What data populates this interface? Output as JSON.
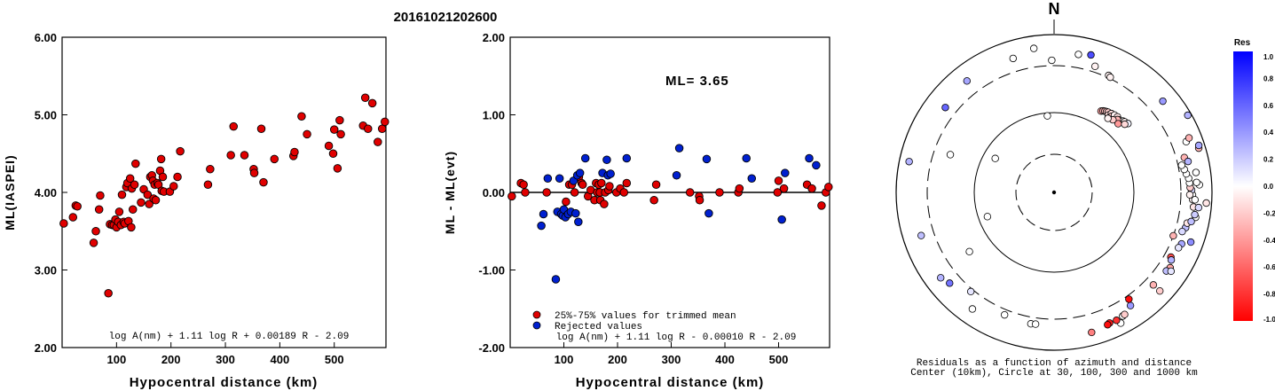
{
  "title": "20161021202600",
  "chart_data": [
    {
      "type": "scatter",
      "xlabel": "Hypocentral distance (km)",
      "ylabel": "ML(IASPEI)",
      "xlim": [
        0,
        595
      ],
      "ylim": [
        2.0,
        6.0
      ],
      "x_ticks": [
        "100",
        "200",
        "300",
        "400",
        "500"
      ],
      "y_ticks": [
        "6.00",
        "5.00",
        "4.00",
        "3.00",
        "2.00"
      ],
      "grid": false,
      "annotation": "log A(nm) + 1.11 log R + 0.00189 R - 2.09",
      "series": [
        {
          "color": "#e00000",
          "points": [
            [
              3,
              3.6
            ],
            [
              20,
              3.68
            ],
            [
              25,
              3.83
            ],
            [
              28,
              3.82
            ],
            [
              58,
              3.35
            ],
            [
              62,
              3.5
            ],
            [
              68,
              3.78
            ],
            [
              70,
              3.96
            ],
            [
              85,
              2.7
            ],
            [
              88,
              3.59
            ],
            [
              92,
              3.58
            ],
            [
              95,
              3.58
            ],
            [
              98,
              3.65
            ],
            [
              100,
              3.55
            ],
            [
              103,
              3.62
            ],
            [
              105,
              3.75
            ],
            [
              108,
              3.58
            ],
            [
              110,
              3.97
            ],
            [
              113,
              3.62
            ],
            [
              115,
              3.6
            ],
            [
              118,
              4.07
            ],
            [
              120,
              4.12
            ],
            [
              122,
              3.63
            ],
            [
              125,
              4.18
            ],
            [
              127,
              3.55
            ],
            [
              128,
              4.05
            ],
            [
              130,
              3.78
            ],
            [
              133,
              4.1
            ],
            [
              135,
              4.37
            ],
            [
              145,
              3.87
            ],
            [
              150,
              4.04
            ],
            [
              157,
              3.97
            ],
            [
              160,
              3.85
            ],
            [
              162,
              4.2
            ],
            [
              165,
              4.22
            ],
            [
              167,
              4.15
            ],
            [
              168,
              3.92
            ],
            [
              170,
              4.1
            ],
            [
              172,
              3.9
            ],
            [
              175,
              4.12
            ],
            [
              177,
              4.1
            ],
            [
              180,
              4.28
            ],
            [
              182,
              4.43
            ],
            [
              183,
              4.02
            ],
            [
              185,
              4.2
            ],
            [
              187,
              4.01
            ],
            [
              198,
              4.01
            ],
            [
              205,
              4.08
            ],
            [
              212,
              4.2
            ],
            [
              217,
              4.53
            ],
            [
              268,
              4.1
            ],
            [
              272,
              4.3
            ],
            [
              310,
              4.48
            ],
            [
              315,
              4.85
            ],
            [
              335,
              4.48
            ],
            [
              352,
              4.3
            ],
            [
              353,
              4.25
            ],
            [
              366,
              4.82
            ],
            [
              370,
              4.13
            ],
            [
              390,
              4.43
            ],
            [
              425,
              4.47
            ],
            [
              427,
              4.52
            ],
            [
              440,
              4.98
            ],
            [
              450,
              4.75
            ],
            [
              490,
              4.6
            ],
            [
              498,
              4.5
            ],
            [
              500,
              4.81
            ],
            [
              506,
              4.31
            ],
            [
              510,
              4.93
            ],
            [
              512,
              4.75
            ],
            [
              553,
              4.86
            ],
            [
              557,
              5.22
            ],
            [
              562,
              4.82
            ],
            [
              570,
              5.15
            ],
            [
              580,
              4.65
            ],
            [
              588,
              4.82
            ],
            [
              593,
              4.91
            ]
          ]
        }
      ]
    },
    {
      "type": "scatter",
      "xlabel": "Hypocentral distance (km)",
      "ylabel": "ML - ML(evt)",
      "xlim": [
        0,
        595
      ],
      "ylim": [
        -2.0,
        2.0
      ],
      "x_ticks": [
        "100",
        "200",
        "300",
        "400",
        "500"
      ],
      "y_ticks": [
        "2.00",
        "1.00",
        "0.00",
        "-1.00",
        "-2.00"
      ],
      "grid": false,
      "reference_line": 0.0,
      "ml_label": "ML= 3.65",
      "annotation": "log A(nm) + 1.11 log R - 0.00010 R - 2.09",
      "legend": [
        {
          "label": "25%-75% values for trimmed mean",
          "color": "#e00000"
        },
        {
          "label": "Rejected values",
          "color": "#0020d0"
        }
      ],
      "series": [
        {
          "name": "25%-75% values for trimmed mean",
          "color": "#e00000",
          "points": [
            [
              3,
              -0.05
            ],
            [
              20,
              0.12
            ],
            [
              25,
              0.1
            ],
            [
              28,
              0.0
            ],
            [
              68,
              0.0
            ],
            [
              104,
              -0.12
            ],
            [
              110,
              0.1
            ],
            [
              115,
              0.1
            ],
            [
              120,
              0.0
            ],
            [
              128,
              0.2
            ],
            [
              133,
              0.12
            ],
            [
              135,
              0.1
            ],
            [
              145,
              -0.05
            ],
            [
              150,
              0.03
            ],
            [
              157,
              -0.1
            ],
            [
              160,
              0.12
            ],
            [
              162,
              0.0
            ],
            [
              165,
              0.1
            ],
            [
              167,
              0.0
            ],
            [
              168,
              -0.1
            ],
            [
              170,
              0.12
            ],
            [
              175,
              -0.15
            ],
            [
              177,
              0.0
            ],
            [
              183,
              0.03
            ],
            [
              185,
              0.08
            ],
            [
              198,
              0.0
            ],
            [
              205,
              0.05
            ],
            [
              212,
              0.0
            ],
            [
              217,
              0.12
            ],
            [
              268,
              -0.1
            ],
            [
              272,
              0.1
            ],
            [
              335,
              0.0
            ],
            [
              352,
              -0.05
            ],
            [
              353,
              -0.1
            ],
            [
              390,
              0.0
            ],
            [
              425,
              0.0
            ],
            [
              427,
              0.05
            ],
            [
              498,
              0.0
            ],
            [
              500,
              0.15
            ],
            [
              510,
              0.05
            ],
            [
              553,
              0.1
            ],
            [
              562,
              0.05
            ],
            [
              580,
              -0.17
            ],
            [
              588,
              0.0
            ],
            [
              593,
              0.07
            ]
          ]
        },
        {
          "name": "Rejected values",
          "color": "#0020d0",
          "points": [
            [
              58,
              -0.43
            ],
            [
              62,
              -0.28
            ],
            [
              70,
              0.18
            ],
            [
              85,
              -1.12
            ],
            [
              88,
              -0.25
            ],
            [
              92,
              0.18
            ],
            [
              95,
              -0.28
            ],
            [
              98,
              -0.3
            ],
            [
              100,
              -0.22
            ],
            [
              103,
              -0.32
            ],
            [
              108,
              -0.28
            ],
            [
              113,
              -0.25
            ],
            [
              118,
              0.15
            ],
            [
              122,
              -0.27
            ],
            [
              125,
              0.22
            ],
            [
              127,
              -0.38
            ],
            [
              130,
              0.25
            ],
            [
              140,
              0.44
            ],
            [
              172,
              0.25
            ],
            [
              180,
              0.42
            ],
            [
              182,
              0.22
            ],
            [
              187,
              0.24
            ],
            [
              217,
              0.44
            ],
            [
              310,
              0.22
            ],
            [
              315,
              0.57
            ],
            [
              366,
              0.43
            ],
            [
              370,
              -0.27
            ],
            [
              440,
              0.44
            ],
            [
              450,
              0.18
            ],
            [
              506,
              -0.35
            ],
            [
              512,
              0.25
            ],
            [
              557,
              0.44
            ],
            [
              570,
              0.35
            ]
          ]
        }
      ]
    },
    {
      "type": "scatter",
      "subtype": "polar",
      "north_label": "N",
      "caption_line1": "Residuals as a function of azimuth and distance",
      "caption_line2": "Center (10km), Circle at 30, 100, 300 and 1000 km",
      "colorbar": {
        "title": "Res",
        "ticks": [
          "1.0",
          "0.8",
          "0.6",
          "0.4",
          "0.2",
          "0.0",
          "-0.2",
          "-0.4",
          "-0.6",
          "-0.8",
          "-1.0"
        ],
        "range": [
          -1.0,
          1.0
        ],
        "high_color": "#0000ff",
        "low_color": "#ff0000"
      },
      "points_azimuth_deg_distance_km_residual": [
        [
          30,
          160,
          -0.35
        ],
        [
          31,
          165,
          -0.3
        ],
        [
          32,
          168,
          -0.28
        ],
        [
          33,
          170,
          -0.22
        ],
        [
          34,
          172,
          -0.2
        ],
        [
          35,
          162,
          -0.15
        ],
        [
          36,
          175,
          -0.12
        ],
        [
          37,
          166,
          -0.25
        ],
        [
          38,
          178,
          -0.05
        ],
        [
          40,
          180,
          -0.1
        ],
        [
          42,
          175,
          -0.02
        ],
        [
          44,
          182,
          0.0
        ],
        [
          41,
          171,
          -0.3
        ],
        [
          39,
          158,
          -0.2
        ],
        [
          45,
          185,
          -0.05
        ],
        [
          43,
          160,
          -0.4
        ],
        [
          47,
          190,
          0.05
        ],
        [
          46,
          178,
          -0.15
        ],
        [
          36,
          150,
          -0.05
        ],
        [
          25,
          350,
          -0.05
        ],
        [
          26,
          330,
          -0.05
        ],
        [
          10,
          600,
          0.0
        ],
        [
          15,
          650,
          0.7
        ],
        [
          18,
          430,
          -0.05
        ],
        [
          -1,
          420,
          0.0
        ],
        [
          -8,
          720,
          0.0
        ],
        [
          -38,
          630,
          0.35
        ],
        [
          -52,
          550,
          0.6
        ],
        [
          -78,
          780,
          0.3
        ],
        [
          -108,
          590,
          0.25
        ],
        [
          -127,
          640,
          0.3
        ],
        [
          -131,
          560,
          0.55
        ],
        [
          -140,
          360,
          0.1
        ],
        [
          -145,
          650,
          0.0
        ],
        [
          -158,
          420,
          0.0
        ],
        [
          -170,
          450,
          0.0
        ],
        [
          -172,
          440,
          0.0
        ],
        [
          153,
          750,
          0.0
        ],
        [
          146,
          520,
          0.4
        ],
        [
          151,
          630,
          0.0
        ],
        [
          150,
          620,
          -0.2
        ],
        [
          154,
          650,
          -0.8
        ],
        [
          157,
          640,
          -0.9
        ],
        [
          158,
          660,
          -0.95
        ],
        [
          145,
          380,
          -0.95
        ],
        [
          165,
          710,
          -0.5
        ],
        [
          133,
          500,
          -0.3
        ],
        [
          110,
          300,
          -0.3
        ],
        [
          119,
          450,
          -0.7
        ],
        [
          123,
          560,
          -0.35
        ],
        [
          125,
          530,
          0.25
        ],
        [
          133,
          700,
          -0.2
        ],
        [
          105,
          510,
          0.25
        ],
        [
          103,
          520,
          -0.1
        ],
        [
          100,
          680,
          0.0
        ],
        [
          96,
          600,
          -0.1
        ],
        [
          93,
          570,
          -0.05
        ],
        [
          91,
          560,
          0.0
        ],
        [
          89,
          540,
          0.15
        ],
        [
          88,
          510,
          -0.2
        ],
        [
          86,
          500,
          0.0
        ],
        [
          84,
          490,
          0.0
        ],
        [
          82,
          450,
          0.0
        ],
        [
          80,
          420,
          0.0
        ],
        [
          78,
          380,
          0.0
        ],
        [
          82,
          670,
          0.0
        ],
        [
          87,
          720,
          0.0
        ],
        [
          94,
          880,
          -0.1
        ],
        [
          60,
          920,
          0.3
        ],
        [
          73,
          850,
          -0.3
        ],
        [
          86,
          660,
          0.0
        ],
        [
          96,
          715,
          0.15
        ],
        [
          110,
          720,
          0.45
        ],
        [
          112,
          540,
          0.35
        ],
        [
          107,
          460,
          0.15
        ],
        [
          114,
          510,
          0.1
        ],
        [
          120,
          490,
          0.3
        ],
        [
          124,
          620,
          0.1
        ],
        [
          69,
          630,
          0.0
        ],
        [
          75,
          480,
          -0.3
        ],
        [
          77,
          540,
          0.3
        ],
        [
          91,
          500,
          -0.05
        ],
        [
          93,
          620,
          0.0
        ],
        [
          99,
          650,
          0.2
        ],
        [
          102,
          600,
          0.25
        ],
        [
          68,
          720,
          -0.3
        ],
        [
          72,
          870,
          0.35
        ],
        [
          -60,
          80,
          0.0
        ],
        [
          -110,
          85,
          0.0
        ],
        [
          -125,
          200,
          0.0
        ],
        [
          -70,
          230,
          0.0
        ],
        [
          -5,
          95,
          0.0
        ],
        [
          -17,
          600,
          0.0
        ],
        [
          50,
          640,
          0.4
        ]
      ]
    }
  ]
}
